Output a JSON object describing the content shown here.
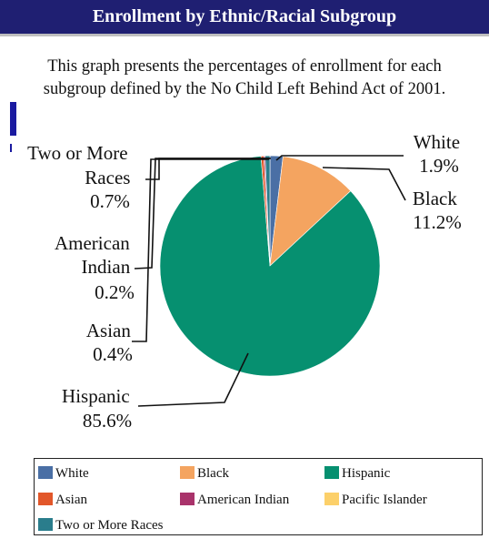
{
  "header": {
    "title": "Enrollment by Ethnic/Racial Subgroup"
  },
  "description": {
    "line1": "This graph presents the percentages of enrollment for each",
    "line2": "subgroup defined by the No Child Left Behind Act of 2001."
  },
  "chart_data": {
    "type": "pie",
    "title": "",
    "categories": [
      "White",
      "Black",
      "Hispanic",
      "Asian",
      "American Indian",
      "Pacific Islander",
      "Two or More Races"
    ],
    "values": [
      1.9,
      11.2,
      85.6,
      0.4,
      0.2,
      0.0,
      0.7
    ],
    "value_labels": [
      "1.9%",
      "11.2%",
      "85.6%",
      "0.4%",
      "0.2%",
      "",
      "0.7%"
    ],
    "colors": [
      "#4a6fa5",
      "#f4a460",
      "#069070",
      "#e2572a",
      "#a9336b",
      "#fcd06a",
      "#2a7d8c"
    ],
    "legend_position": "bottom",
    "slice_labels": {
      "white": {
        "lines": [
          "White",
          "1.9%"
        ]
      },
      "black": {
        "lines": [
          "Black",
          "11.2%"
        ]
      },
      "two_or_more": {
        "lines": [
          "Two or More",
          "Races",
          "0.7%"
        ]
      },
      "american_indian": {
        "lines": [
          "American",
          "Indian",
          "0.2%"
        ]
      },
      "asian": {
        "lines": [
          "Asian",
          "0.4%"
        ]
      },
      "hispanic": {
        "lines": [
          "Hispanic",
          "85.6%"
        ]
      }
    }
  },
  "legend": {
    "items": [
      {
        "label": "White",
        "color": "#4a6fa5"
      },
      {
        "label": "Black",
        "color": "#f4a460"
      },
      {
        "label": "Hispanic",
        "color": "#069070"
      },
      {
        "label": "Asian",
        "color": "#e2572a"
      },
      {
        "label": "American Indian",
        "color": "#a9336b"
      },
      {
        "label": "Pacific Islander",
        "color": "#fcd06a"
      },
      {
        "label": "Two or More Races",
        "color": "#2a7d8c"
      }
    ]
  }
}
